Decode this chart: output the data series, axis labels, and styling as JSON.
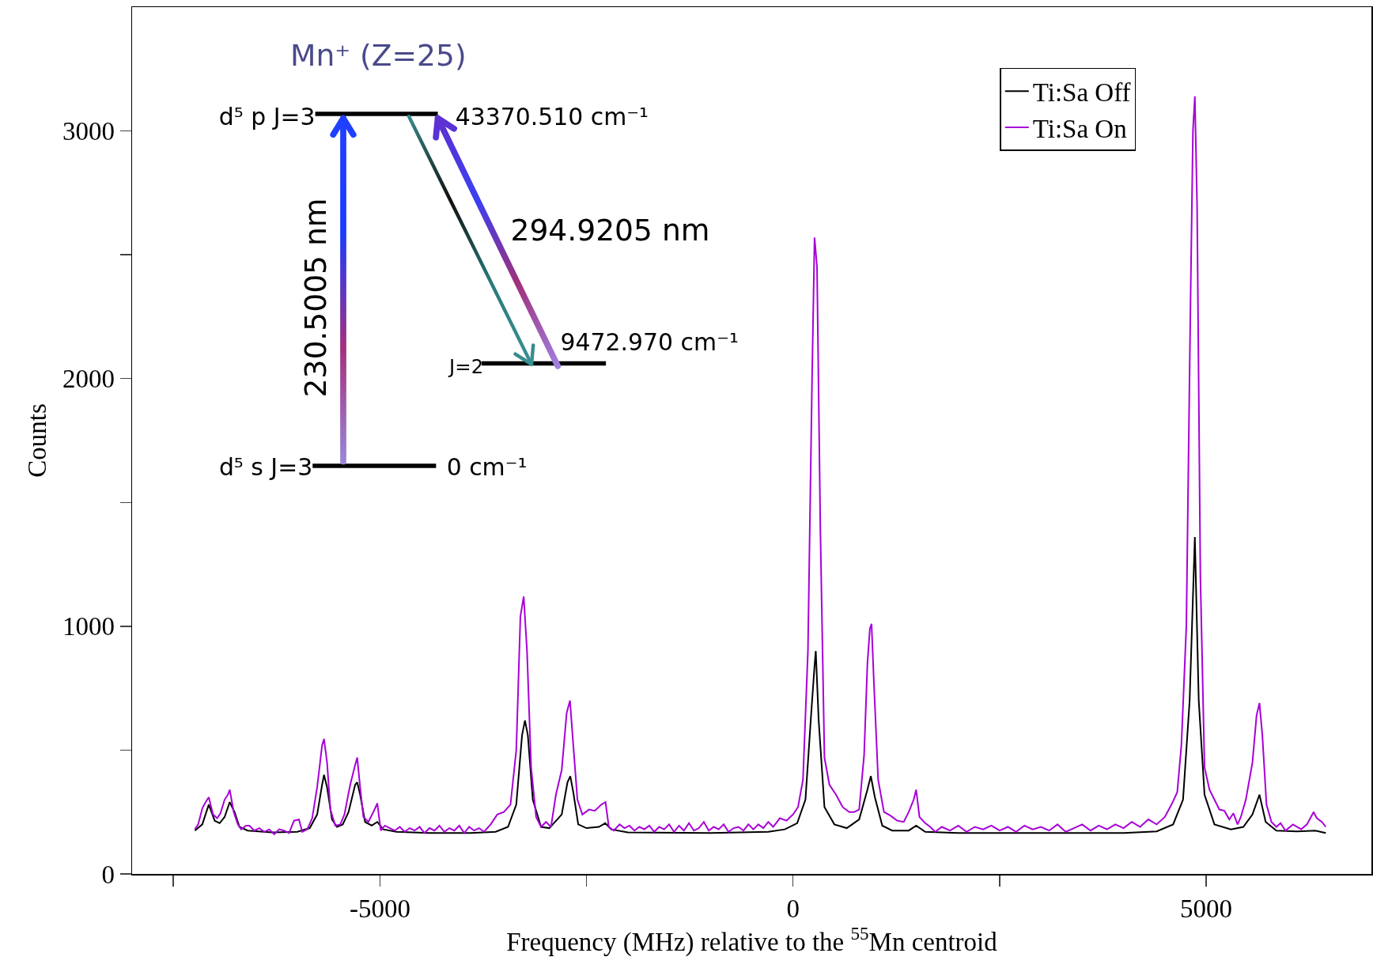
{
  "chart_data": {
    "type": "line",
    "xlabel": "Frequency (MHz) relative to the $^{55}$Mn centroid",
    "ylabel": "Counts",
    "xlim": [
      -8000,
      7000
    ],
    "xticks": [
      {
        "value": -7500,
        "label": null
      },
      -5000,
      {
        "value": -2500,
        "label": null
      },
      0,
      {
        "value": 2500,
        "label": null
      },
      5000
    ],
    "ylim": [
      0,
      3500
    ],
    "yticks": [
      0,
      {
        "value": 500,
        "label": null
      },
      1000,
      {
        "value": 1500,
        "label": null
      },
      2000,
      {
        "value": 2500,
        "label": null
      },
      3000
    ],
    "grid": false,
    "legend": "top right",
    "annotations": [
      "Mn⁺ (Z=25)",
      "d⁵ p  J=3",
      "43370.510 cm⁻¹",
      "294.9205 nm",
      "230.5005 nm",
      "J=2",
      "9472.970 cm⁻¹",
      "d⁵ s  J=3",
      "0 cm⁻¹"
    ],
    "series": [
      {
        "name": "Ti:Sa Off",
        "color": "#000000",
        "x": [
          -7240,
          -7150,
          -7072,
          -7000,
          -6940,
          -6880,
          -6818,
          -6760,
          -6700,
          -6600,
          -6300,
          -6000,
          -5850,
          -5760,
          -5700,
          -5677,
          -5640,
          -5580,
          -5520,
          -5450,
          -5380,
          -5300,
          -5275,
          -5240,
          -5180,
          -5100,
          -5032,
          -4960,
          -4800,
          -4400,
          -3900,
          -3600,
          -3450,
          -3350,
          -3280,
          -3245,
          -3210,
          -3150,
          -3050,
          -2950,
          -2800,
          -2730,
          -2696,
          -2660,
          -2600,
          -2500,
          -2350,
          -2273,
          -2200,
          -2000,
          -1000,
          -300,
          -100,
          50,
          150,
          220,
          260,
          275,
          310,
          380,
          500,
          650,
          800,
          900,
          941,
          990,
          1080,
          1200,
          1400,
          1490,
          1600,
          2000,
          3000,
          4000,
          4400,
          4600,
          4720,
          4800,
          4863,
          4910,
          4980,
          5100,
          5300,
          5450,
          5560,
          5645,
          5720,
          5850,
          6100,
          6321,
          6448
        ],
        "values": [
          175,
          200,
          280,
          215,
          205,
          230,
          290,
          250,
          190,
          175,
          168,
          170,
          185,
          240,
          360,
          400,
          350,
          220,
          190,
          200,
          250,
          360,
          370,
          320,
          210,
          195,
          210,
          180,
          170,
          165,
          165,
          170,
          190,
          280,
          560,
          620,
          560,
          300,
          190,
          185,
          240,
          370,
          395,
          330,
          200,
          185,
          190,
          205,
          180,
          168,
          165,
          170,
          180,
          205,
          300,
          650,
          840,
          900,
          620,
          270,
          200,
          185,
          220,
          340,
          395,
          310,
          195,
          175,
          175,
          195,
          170,
          165,
          165,
          165,
          172,
          200,
          300,
          700,
          1360,
          700,
          320,
          200,
          180,
          190,
          240,
          320,
          210,
          175,
          172,
          175,
          165
        ]
      },
      {
        "name": "Ti:Sa On",
        "color": "#a800d8",
        "x": [
          -7240,
          -7200,
          -7150,
          -7110,
          -7072,
          -7020,
          -6970,
          -6930,
          -6880,
          -6840,
          -6818,
          -6770,
          -6720,
          -6680,
          -6620,
          -6580,
          -6520,
          -6460,
          -6400,
          -6340,
          -6280,
          -6220,
          -6160,
          -6100,
          -6040,
          -5980,
          -5940,
          -5880,
          -5820,
          -5760,
          -5700,
          -5677,
          -5640,
          -5600,
          -5540,
          -5480,
          -5430,
          -5360,
          -5300,
          -5275,
          -5240,
          -5200,
          -5140,
          -5080,
          -5032,
          -4990,
          -4940,
          -4880,
          -4820,
          -4760,
          -4700,
          -4640,
          -4580,
          -4520,
          -4460,
          -4400,
          -4340,
          -4280,
          -4220,
          -4160,
          -4100,
          -4040,
          -3980,
          -3920,
          -3860,
          -3800,
          -3740,
          -3660,
          -3580,
          -3500,
          -3420,
          -3350,
          -3300,
          -3260,
          -3220,
          -3170,
          -3110,
          -3050,
          -2990,
          -2930,
          -2870,
          -2800,
          -2740,
          -2700,
          -2660,
          -2610,
          -2550,
          -2470,
          -2400,
          -2320,
          -2270,
          -2230,
          -2170,
          -2100,
          -2040,
          -1980,
          -1920,
          -1860,
          -1800,
          -1740,
          -1680,
          -1620,
          -1560,
          -1500,
          -1440,
          -1380,
          -1320,
          -1260,
          -1200,
          -1140,
          -1080,
          -1020,
          -960,
          -900,
          -840,
          -780,
          -720,
          -660,
          -600,
          -540,
          -480,
          -420,
          -360,
          -300,
          -240,
          -160,
          -80,
          0,
          60,
          120,
          180,
          230,
          260,
          290,
          330,
          380,
          440,
          520,
          600,
          680,
          740,
          800,
          860,
          900,
          930,
          950,
          980,
          1030,
          1100,
          1180,
          1260,
          1340,
          1400,
          1460,
          1490,
          1530,
          1600,
          1660,
          1720,
          1800,
          1900,
          2000,
          2100,
          2200,
          2300,
          2400,
          2500,
          2600,
          2700,
          2800,
          2900,
          3000,
          3100,
          3200,
          3300,
          3400,
          3500,
          3600,
          3700,
          3800,
          3900,
          4000,
          4100,
          4200,
          4300,
          4400,
          4500,
          4580,
          4650,
          4700,
          4760,
          4810,
          4840,
          4863,
          4890,
          4930,
          4980,
          5040,
          5100,
          5160,
          5220,
          5280,
          5330,
          5380,
          5420,
          5480,
          5560,
          5610,
          5645,
          5680,
          5730,
          5790,
          5850,
          5900,
          5960,
          6050,
          6150,
          6220,
          6300,
          6340,
          6400,
          6448
        ],
        "values": [
          180,
          200,
          265,
          290,
          310,
          240,
          225,
          245,
          300,
          320,
          340,
          250,
          200,
          180,
          195,
          195,
          175,
          185,
          170,
          180,
          160,
          180,
          175,
          165,
          215,
          220,
          170,
          180,
          225,
          350,
          520,
          545,
          450,
          260,
          195,
          200,
          240,
          360,
          440,
          470,
          350,
          230,
          210,
          250,
          285,
          175,
          195,
          185,
          175,
          190,
          170,
          185,
          175,
          190,
          165,
          185,
          175,
          195,
          170,
          185,
          175,
          195,
          165,
          190,
          175,
          185,
          170,
          200,
          240,
          250,
          280,
          500,
          1040,
          1120,
          900,
          430,
          230,
          190,
          210,
          190,
          320,
          420,
          650,
          700,
          520,
          300,
          240,
          260,
          255,
          280,
          290,
          190,
          175,
          200,
          185,
          195,
          175,
          190,
          180,
          195,
          170,
          190,
          180,
          200,
          170,
          195,
          175,
          205,
          175,
          185,
          210,
          175,
          190,
          180,
          200,
          170,
          185,
          190,
          175,
          200,
          180,
          200,
          185,
          210,
          190,
          225,
          215,
          240,
          270,
          380,
          900,
          2000,
          2570,
          2450,
          1400,
          470,
          360,
          320,
          270,
          250,
          250,
          260,
          480,
          850,
          990,
          1010,
          760,
          380,
          250,
          235,
          215,
          210,
          250,
          300,
          340,
          230,
          205,
          190,
          170,
          190,
          175,
          195,
          170,
          190,
          180,
          195,
          175,
          190,
          170,
          195,
          180,
          190,
          175,
          200,
          170,
          185,
          200,
          175,
          195,
          180,
          200,
          185,
          210,
          190,
          220,
          200,
          230,
          280,
          330,
          520,
          1000,
          2300,
          3000,
          3140,
          2700,
          1200,
          430,
          340,
          300,
          260,
          255,
          220,
          245,
          200,
          230,
          300,
          450,
          640,
          690,
          560,
          280,
          210,
          190,
          205,
          175,
          200,
          180,
          200,
          250,
          225,
          210,
          190
        ]
      }
    ]
  }
}
